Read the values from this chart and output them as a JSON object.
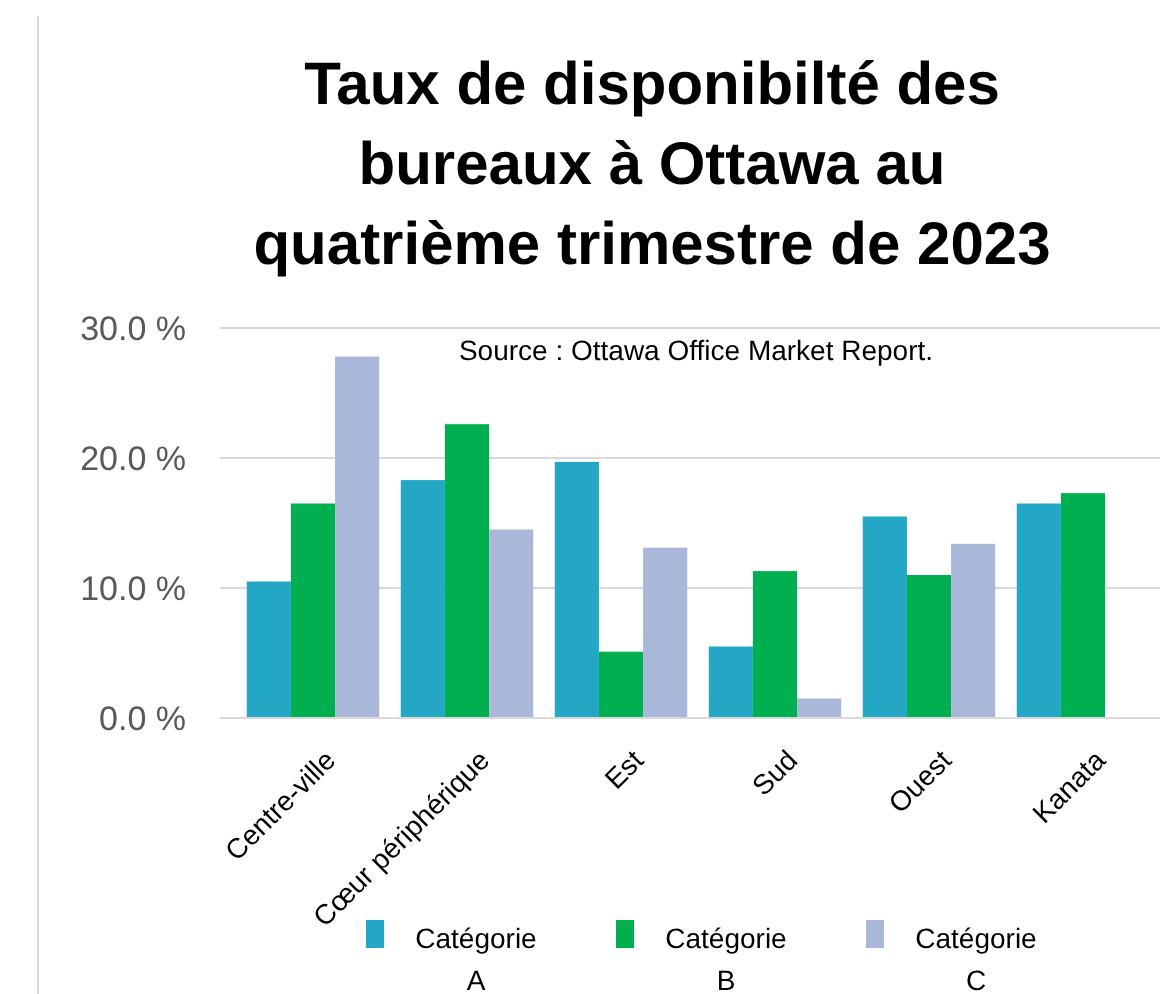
{
  "chart_data": {
    "type": "bar",
    "title": "Taux de disponibilté des bureaux à Ottawa au quatrième trimestre de 2023",
    "annotations": [
      "Source : Ottawa Office Market Report."
    ],
    "categories": [
      "Centre-ville",
      "Cœur périphérique",
      "Est",
      "Sud",
      "Ouest",
      "Kanata"
    ],
    "series": [
      {
        "name": "Catégorie A",
        "color": "#23a7c4",
        "values": [
          10.5,
          18.3,
          19.7,
          5.5,
          15.5,
          16.5
        ]
      },
      {
        "name": "Catégorie B",
        "color": "#00b050",
        "values": [
          16.5,
          22.6,
          5.1,
          11.3,
          11.0,
          17.3
        ]
      },
      {
        "name": "Catégorie C",
        "color": "#a9b8d8",
        "values": [
          27.8,
          14.5,
          13.1,
          1.5,
          13.4,
          null
        ]
      }
    ],
    "ylim": [
      0,
      30
    ],
    "yticks": [
      {
        "value": 0,
        "label": "0.0 %"
      },
      {
        "value": 10,
        "label": "10.0 %"
      },
      {
        "value": 20,
        "label": "20.0 %"
      },
      {
        "value": 30,
        "label": "30.0 %"
      }
    ],
    "grid": "y",
    "legend": "bottom"
  }
}
